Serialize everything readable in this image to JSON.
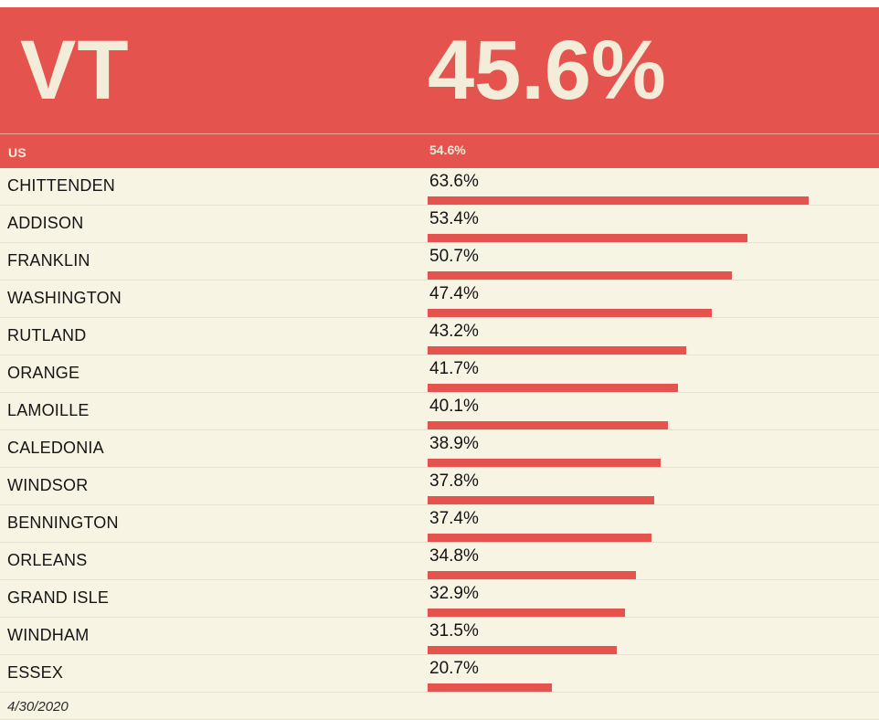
{
  "colors": {
    "accent": "#e5534f",
    "background": "#f8f4e3",
    "header_text": "#f2ecd9",
    "divider": "#e6e2d0",
    "text": "#141414"
  },
  "header": {
    "region_label": "VT",
    "region_value": "45.6%"
  },
  "benchmark_row": {
    "label": "US",
    "value": "54.6%"
  },
  "footer": {
    "date": "4/30/2020"
  },
  "chart_data": {
    "type": "bar",
    "orientation": "horizontal",
    "title": "VT",
    "title_value": "45.6%",
    "benchmark_label": "US",
    "benchmark_value": 54.6,
    "state_value": 45.6,
    "unit": "%",
    "xlim": [
      0,
      100
    ],
    "grid": "off",
    "legend": "none",
    "bar_color": "#e5534f",
    "categories": [
      "CHITTENDEN",
      "ADDISON",
      "FRANKLIN",
      "WASHINGTON",
      "RUTLAND",
      "ORANGE",
      "LAMOILLE",
      "CALEDONIA",
      "WINDSOR",
      "BENNINGTON",
      "ORLEANS",
      "GRAND ISLE",
      "WINDHAM",
      "ESSEX"
    ],
    "values": [
      63.6,
      53.4,
      50.7,
      47.4,
      43.2,
      41.7,
      40.1,
      38.9,
      37.8,
      37.4,
      34.8,
      32.9,
      31.5,
      20.7
    ],
    "value_labels": [
      "63.6%",
      "53.4%",
      "50.7%",
      "47.4%",
      "43.2%",
      "41.7%",
      "40.1%",
      "38.9%",
      "37.8%",
      "37.4%",
      "34.8%",
      "32.9%",
      "31.5%",
      "20.7%"
    ]
  }
}
